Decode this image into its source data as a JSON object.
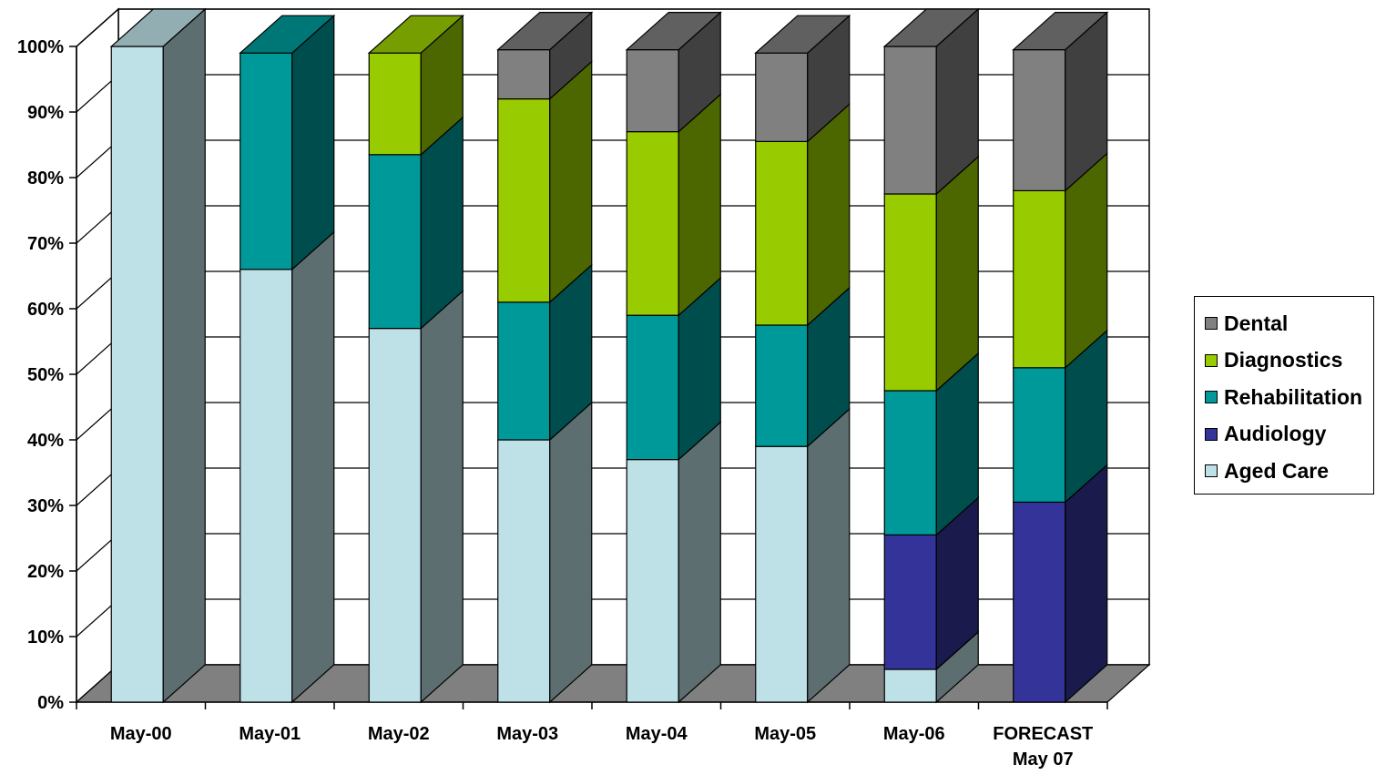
{
  "chart_data": {
    "type": "bar",
    "stacked": true,
    "percent_stacked": true,
    "three_d": true,
    "categories": [
      "May-00",
      "May-01",
      "May-02",
      "May-03",
      "May-04",
      "May-05",
      "May-06",
      [
        "FORECAST",
        "May 07"
      ]
    ],
    "series": [
      {
        "name": "Aged Care",
        "values": [
          100,
          66,
          57,
          40,
          37,
          39,
          5,
          0
        ]
      },
      {
        "name": "Audiology",
        "values": [
          0,
          0,
          0,
          0,
          0,
          0,
          20.5,
          30.5
        ]
      },
      {
        "name": "Rehabilitation",
        "values": [
          0,
          33,
          26.5,
          21,
          22,
          18.5,
          22,
          20.5
        ]
      },
      {
        "name": "Diagnostics",
        "values": [
          0,
          0,
          15.5,
          31,
          28,
          28,
          30,
          27
        ]
      },
      {
        "name": "Dental",
        "values": [
          0,
          0,
          0,
          7.5,
          12.5,
          13.5,
          22.5,
          21.5
        ]
      }
    ],
    "colors": {
      "Aged Care": {
        "front": "#BDE1E6",
        "side": "#5D6E71",
        "top": "#93AEB2"
      },
      "Audiology": {
        "front": "#333399",
        "side": "#1A1A4D",
        "top": "#26267A"
      },
      "Rehabilitation": {
        "front": "#009999",
        "side": "#004D4D",
        "top": "#007777"
      },
      "Diagnostics": {
        "front": "#99CC00",
        "side": "#4C6600",
        "top": "#779E00"
      },
      "Dental": {
        "front": "#808080",
        "side": "#404040",
        "top": "#606060"
      }
    },
    "y_ticks": [
      "0%",
      "10%",
      "20%",
      "30%",
      "40%",
      "50%",
      "60%",
      "70%",
      "80%",
      "90%",
      "100%"
    ],
    "ylim": [
      0,
      100
    ],
    "grid": true,
    "legend": {
      "position": "right",
      "order": [
        "Dental",
        "Diagnostics",
        "Rehabilitation",
        "Audiology",
        "Aged Care"
      ]
    }
  }
}
